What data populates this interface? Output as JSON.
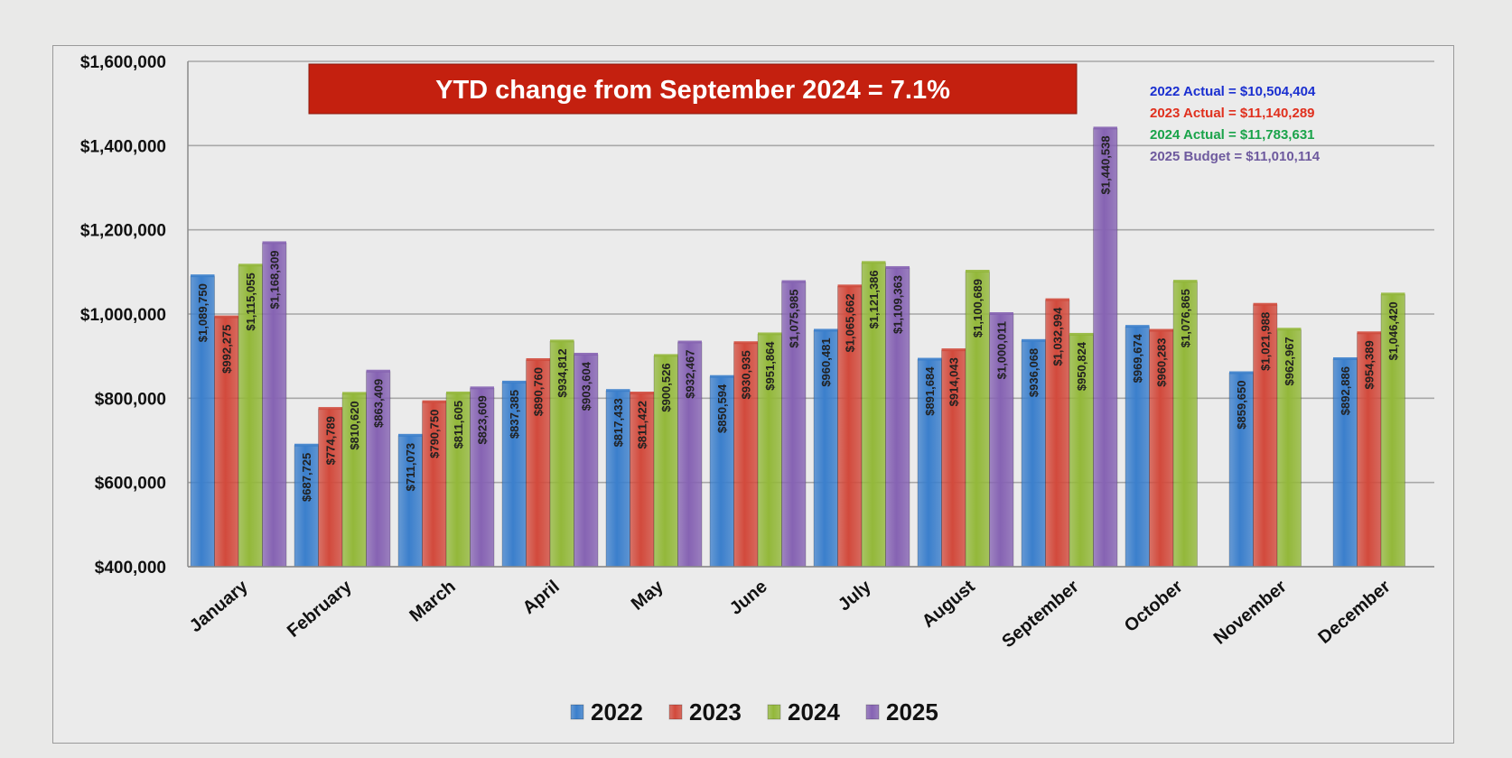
{
  "chart_data": {
    "type": "bar",
    "title": "",
    "xlabel": "",
    "ylabel": "",
    "ylim": [
      400000,
      1600000
    ],
    "ytick_values": [
      400000,
      600000,
      800000,
      1000000,
      1200000,
      1400000,
      1600000
    ],
    "ytick_labels": [
      "$400,000",
      "$600,000",
      "$800,000",
      "$1,000,000",
      "$1,200,000",
      "$1,400,000",
      "$1,600,000"
    ],
    "categories": [
      "January",
      "February",
      "March",
      "April",
      "May",
      "June",
      "July",
      "August",
      "September",
      "October",
      "November",
      "December"
    ],
    "series": [
      {
        "name": "2022",
        "color": "#3b7fcc",
        "values": [
          1089750,
          687725,
          711073,
          837385,
          817433,
          850594,
          960481,
          891684,
          936068,
          969674,
          859650,
          892886
        ],
        "labels": [
          "$1,089,750",
          "$687,725",
          "$711,073",
          "$837,385",
          "$817,433",
          "$850,594",
          "$960,481",
          "$891,684",
          "$936,068",
          "$969,674",
          "$859,650",
          "$892,886"
        ]
      },
      {
        "name": "2023",
        "color": "#d24a3c",
        "values": [
          992275,
          774789,
          790750,
          890760,
          811422,
          930935,
          1065662,
          914043,
          1032994,
          960283,
          1021988,
          954389
        ],
        "labels": [
          "$992,275",
          "$774,789",
          "$790,750",
          "$890,760",
          "$811,422",
          "$930,935",
          "$1,065,662",
          "$914,043",
          "$1,032,994",
          "$960,283",
          "$1,021,988",
          "$954,389"
        ]
      },
      {
        "name": "2024",
        "color": "#93b83a",
        "values": [
          1115055,
          810620,
          811605,
          934812,
          900526,
          951864,
          1121386,
          1100689,
          950824,
          1076865,
          962967,
          1046420
        ],
        "labels": [
          "$1,115,055",
          "$810,620",
          "$811,605",
          "$934,812",
          "$900,526",
          "$951,864",
          "$1,121,386",
          "$1,100,689",
          "$950,824",
          "$1,076,865",
          "$962,967",
          "$1,046,420"
        ]
      },
      {
        "name": "2025",
        "color": "#8663b3",
        "values": [
          1168309,
          863409,
          823609,
          903604,
          932467,
          1075985,
          1109363,
          1000011,
          1440538,
          null,
          null,
          null
        ],
        "labels": [
          "$1,168,309",
          "$863,409",
          "$823,609",
          "$903,604",
          "$932,467",
          "$1,075,985",
          "$1,109,363",
          "$1,000,011",
          "$1,440,538",
          null,
          null,
          null
        ]
      }
    ],
    "annotations": {
      "banner": "YTD change from September 2024 = 7.1%",
      "banner_color": "#c4200f",
      "actuals": [
        {
          "text": "2022 Actual =  $10,504,404",
          "color": "#1a2fd0"
        },
        {
          "text": "2023 Actual = $11,140,289",
          "color": "#e0301e"
        },
        {
          "text": "2024 Actual = $11,783,631",
          "color": "#1aa34a"
        },
        {
          "text": "2025 Budget = $11,010,114",
          "color": "#6e5a9e"
        }
      ]
    },
    "legend": {
      "position": "bottom",
      "entries": [
        "2022",
        "2023",
        "2024",
        "2025"
      ]
    },
    "grid": true
  }
}
